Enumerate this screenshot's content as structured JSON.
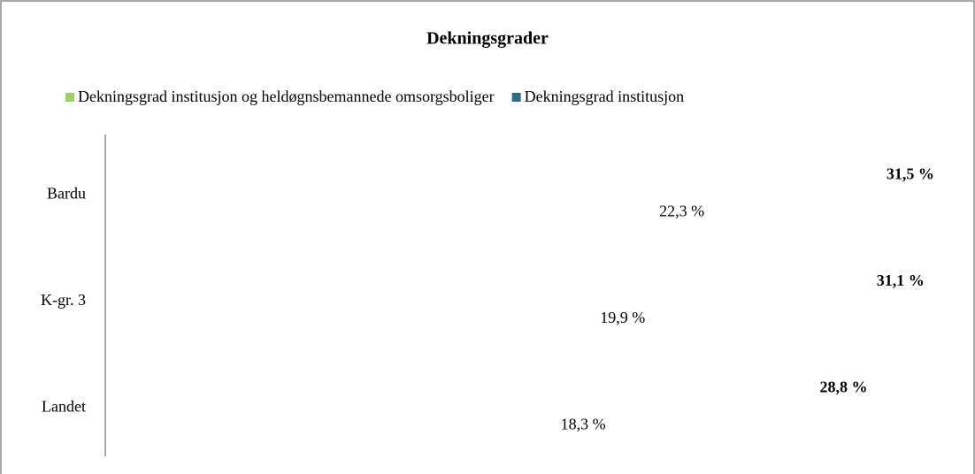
{
  "chart_data": {
    "type": "hbar",
    "title": "Dekningsgrader",
    "categories": [
      "Bardu",
      "K-gr. 3",
      "Landet"
    ],
    "series": [
      {
        "name": "Dekningsgrad institusjon og heldøgnsbemannede omsorgsboliger",
        "color": "#9bd36a",
        "values": [
          31.5,
          31.1,
          28.8
        ],
        "value_labels": [
          "31,5 %",
          "31,1 %",
          "28,8 %"
        ]
      },
      {
        "name": "Dekningsgrad institusjon",
        "color": "#2e6b8a",
        "values": [
          22.3,
          19.9,
          18.3
        ],
        "value_labels": [
          "22,3 %",
          "19,9 %",
          "18,3 %"
        ]
      }
    ]
  }
}
